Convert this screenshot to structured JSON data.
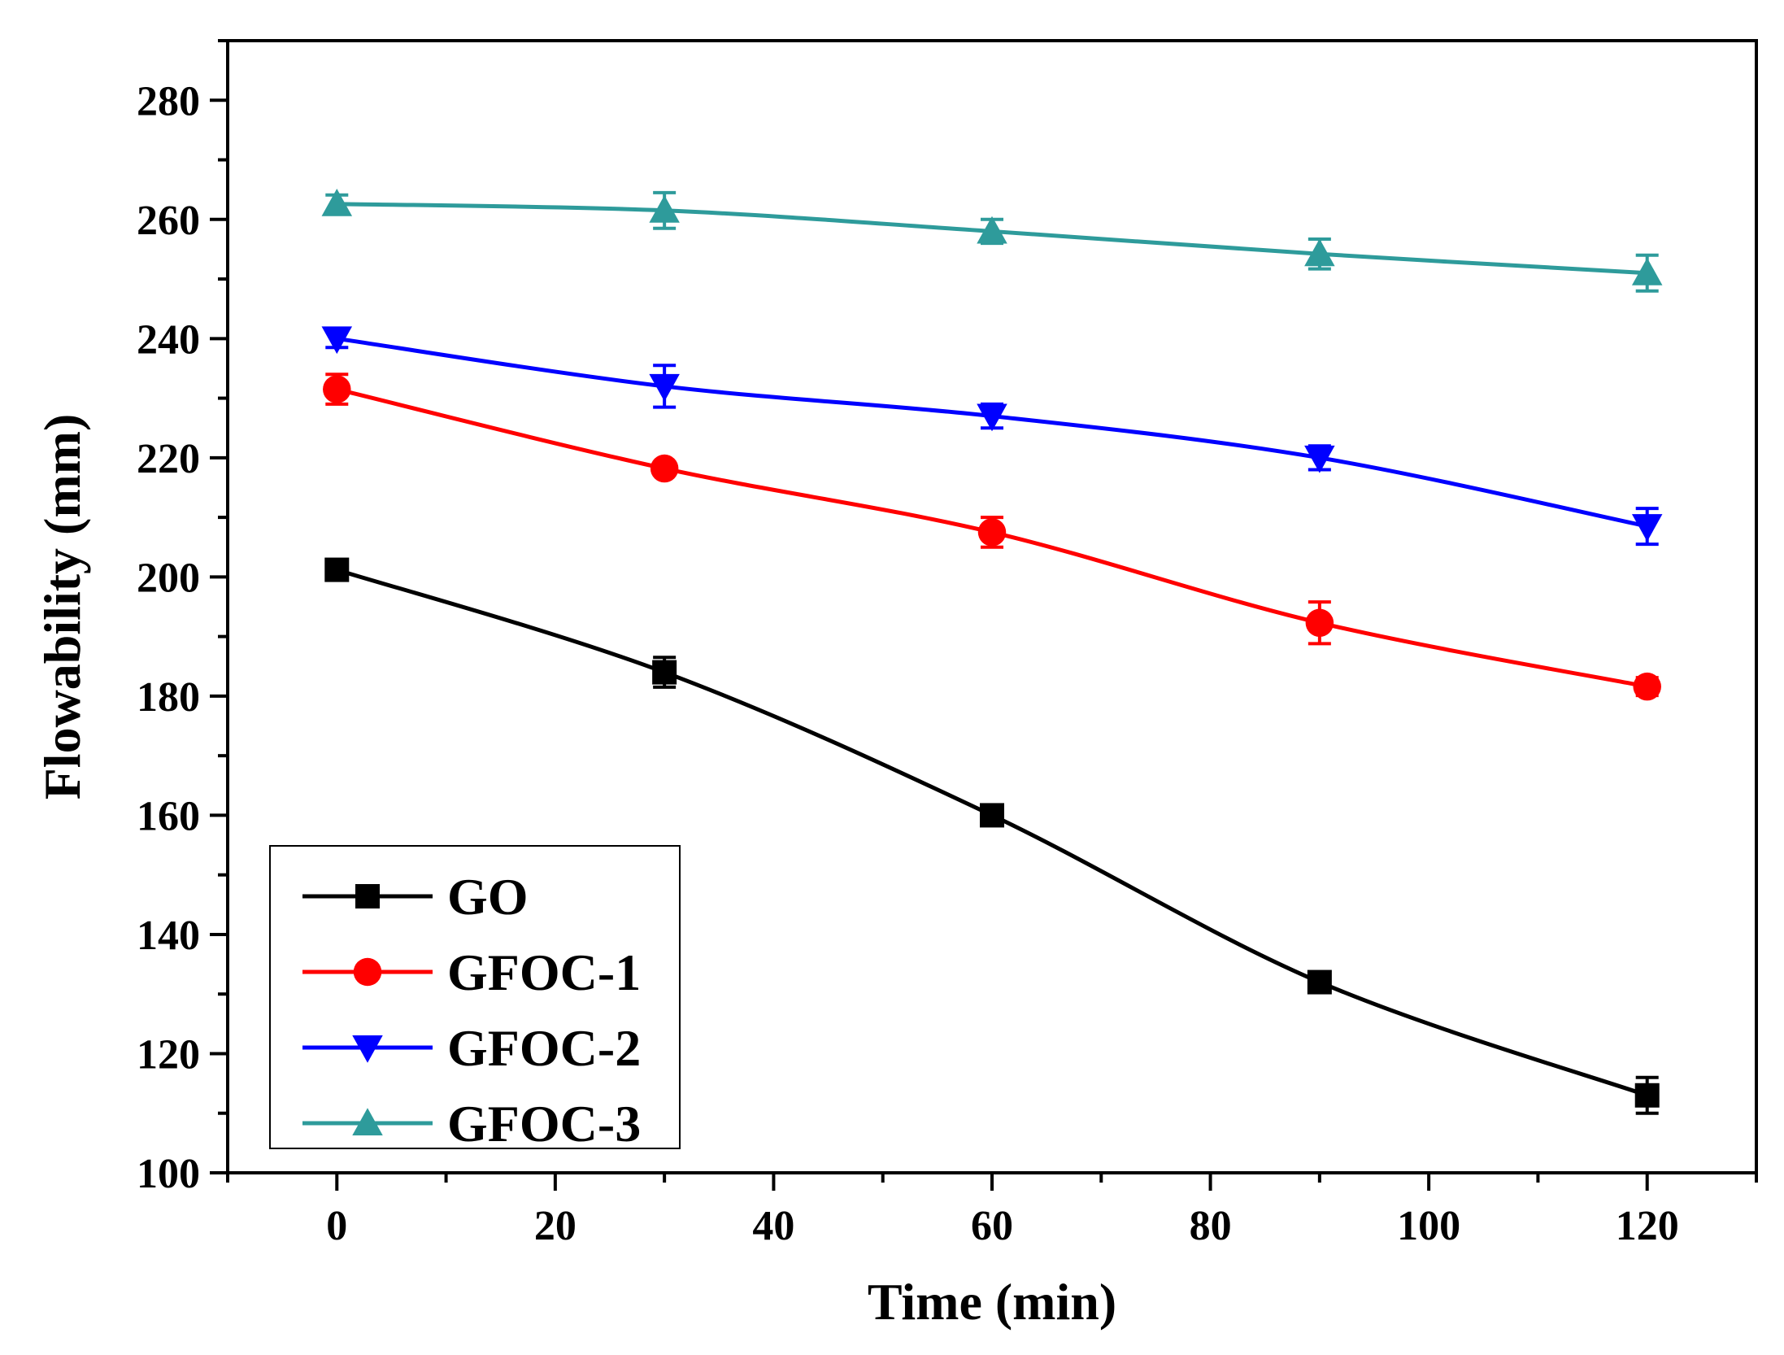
{
  "chart_data": {
    "type": "line",
    "title": "",
    "xlabel": "Time (min)",
    "ylabel": "Flowability (mm)",
    "xlim": [
      -10,
      130
    ],
    "ylim": [
      100,
      290
    ],
    "x_ticks": [
      0,
      20,
      40,
      60,
      80,
      100,
      120
    ],
    "y_ticks": [
      100,
      120,
      140,
      160,
      180,
      200,
      220,
      240,
      260,
      280
    ],
    "x": [
      0,
      30,
      60,
      90,
      120
    ],
    "legend_position": "bottom-left",
    "series": [
      {
        "name": "GO",
        "marker": "square",
        "color": "#000000",
        "values": [
          201.2,
          184.0,
          160.0,
          132.0,
          113.0
        ],
        "errors": [
          1.5,
          2.5,
          1.0,
          1.0,
          3.0
        ]
      },
      {
        "name": "GFOC-1",
        "marker": "circle",
        "color": "#ff0000",
        "values": [
          231.5,
          218.2,
          207.5,
          192.3,
          181.6
        ],
        "errors": [
          2.5,
          1.0,
          2.5,
          3.5,
          1.5
        ]
      },
      {
        "name": "GFOC-2",
        "marker": "triangle-down",
        "color": "#0000ff",
        "values": [
          240.0,
          232.0,
          227.0,
          220.0,
          208.5
        ],
        "errors": [
          1.5,
          3.5,
          2.0,
          2.0,
          3.0
        ]
      },
      {
        "name": "GFOC-3",
        "marker": "triangle-up",
        "color": "#2e9b9b",
        "values": [
          262.6,
          261.5,
          258.0,
          254.2,
          251.0
        ],
        "errors": [
          1.5,
          3.0,
          2.0,
          2.5,
          3.0
        ]
      }
    ]
  }
}
